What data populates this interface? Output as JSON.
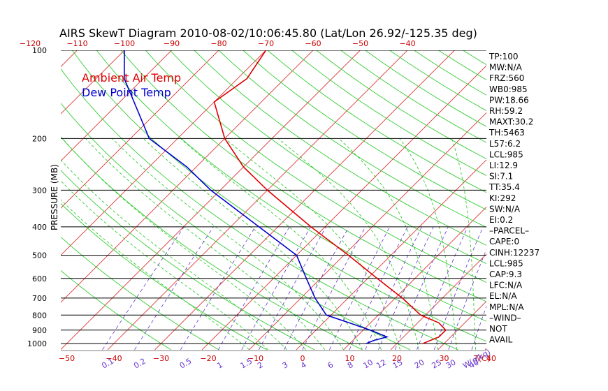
{
  "chart_data": {
    "type": "line",
    "title": "AIRS SkewT Diagram 2010-08-02/10:06:45.80 (Lat/Lon 26.92/-125.35 deg)",
    "ylabel": "PRESSURE (MB)",
    "pressure_ticks": [
      {
        "p": 100,
        "label": "100"
      },
      {
        "p": 200,
        "label": "200"
      },
      {
        "p": 300,
        "label": "300"
      },
      {
        "p": 400,
        "label": "400"
      },
      {
        "p": 500,
        "label": "500"
      },
      {
        "p": 600,
        "label": "600"
      },
      {
        "p": 700,
        "label": "700"
      },
      {
        "p": 800,
        "label": "800"
      },
      {
        "p": 900,
        "label": "900"
      },
      {
        "p": 1000,
        "label": "1000"
      }
    ],
    "top_temp_ticks": [
      -120,
      -110,
      -100,
      -90,
      -80,
      -70,
      -60,
      -50,
      -40
    ],
    "bottom_temp_ticks": [
      -50,
      -40,
      -30,
      -20,
      -10,
      0,
      10,
      20,
      30,
      40
    ],
    "temp_unit_label": "T(C)",
    "mixing_ratio_ticks": [
      "0.1",
      "0.2",
      "0.5",
      "1",
      "1.5",
      "2",
      "3",
      "4",
      "6",
      "8",
      "10",
      "12",
      "15",
      "20",
      "25",
      "30",
      "40"
    ],
    "mixing_ratio_unit_label": "W(g/kg)",
    "series": [
      {
        "name": "Ambient Air Temp",
        "color": "#dd0000",
        "points": [
          {
            "p": 1000,
            "t": 25.5
          },
          {
            "p": 950,
            "t": 27.5
          },
          {
            "p": 900,
            "t": 27.5
          },
          {
            "p": 850,
            "t": 24.5
          },
          {
            "p": 800,
            "t": 19
          },
          {
            "p": 700,
            "t": 11.5
          },
          {
            "p": 600,
            "t": 2
          },
          {
            "p": 500,
            "t": -9
          },
          {
            "p": 400,
            "t": -23
          },
          {
            "p": 300,
            "t": -40
          },
          {
            "p": 250,
            "t": -50
          },
          {
            "p": 200,
            "t": -60
          },
          {
            "p": 150,
            "t": -70
          },
          {
            "p": 125,
            "t": -68
          },
          {
            "p": 100,
            "t": -70
          }
        ]
      },
      {
        "name": "Dew Point Temp",
        "color": "#0000cc",
        "points": [
          {
            "p": 1000,
            "t": 13.5
          },
          {
            "p": 975,
            "t": 14.5
          },
          {
            "p": 950,
            "t": 16.5
          },
          {
            "p": 900,
            "t": 11.5
          },
          {
            "p": 850,
            "t": 5.5
          },
          {
            "p": 800,
            "t": -1
          },
          {
            "p": 700,
            "t": -7
          },
          {
            "p": 600,
            "t": -13
          },
          {
            "p": 500,
            "t": -20
          },
          {
            "p": 400,
            "t": -34
          },
          {
            "p": 300,
            "t": -52
          },
          {
            "p": 250,
            "t": -62
          },
          {
            "p": 200,
            "t": -76
          },
          {
            "p": 150,
            "t": -87
          },
          {
            "p": 125,
            "t": -94
          },
          {
            "p": 100,
            "t": -100
          }
        ]
      }
    ],
    "grid": true
  },
  "stats": [
    "TP:100",
    "MW:N/A",
    "FRZ:560",
    "WB0:985",
    "PW:18.66",
    "RH:59.2",
    "MAXT:30.2",
    "TH:5463",
    "L57:6.2",
    "LCL:985",
    "LI:12.9",
    "SI:7.1",
    "TT:35.4",
    "KI:292",
    "SW:N/A",
    "EI:0.2",
    "–PARCEL–",
    "CAPE:0",
    "CINH:12237",
    "LCL:985",
    "CAP:9.3",
    "LFC:N/A",
    "EL:N/A",
    "MPL:N/A",
    "–WIND–",
    "NOT",
    "AVAIL"
  ],
  "colors": {
    "temp": "#dd0000",
    "dewpoint": "#0000cc",
    "isotherm": "#dd3333",
    "dry_adiabat": "#33cc33",
    "moist_adiabat": "#33cc33",
    "mixing_ratio": "#6633cc",
    "isobar": "#000000"
  }
}
